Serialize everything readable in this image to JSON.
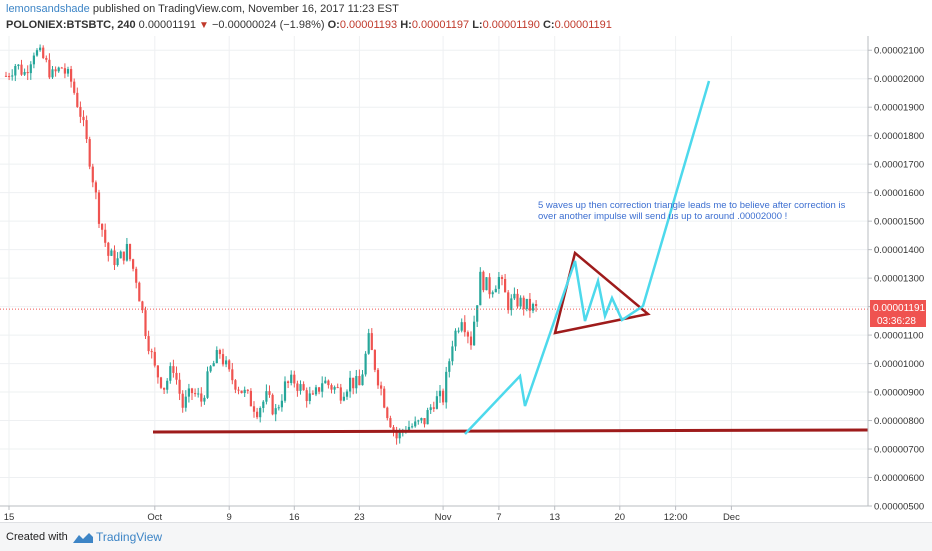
{
  "header": {
    "author": "lemonsandshade",
    "published_text": "published on TradingView.com, November 16, 2017 11:23 EST",
    "symbol": "POLONIEX:BTSBTC, 240",
    "last": "0.00001191",
    "change": "−0.00000024 (−1.98%)",
    "o_label": "O:",
    "o_value": "0.00001193",
    "h_label": "H:",
    "h_value": "0.00001197",
    "l_label": "L:",
    "l_value": "0.00001190",
    "c_label": "C:",
    "c_value": "0.00001191"
  },
  "footer": {
    "created_with": "Created with",
    "brand": "TradingView"
  },
  "colors": {
    "up": "#26a69a",
    "down": "#ef5350",
    "annotation_line": "#9e1b1b",
    "wave_line": "#4dd9ec",
    "price_tag": "#ef5350",
    "annotation_text": "#3d6fd1"
  },
  "chart_data": {
    "type": "candlestick",
    "y_axis": {
      "min": 5e-06,
      "max": 2.15e-05,
      "tick_labels": [
        "0.00000500",
        "0.00000600",
        "0.00000700",
        "0.00000800",
        "0.00000900",
        "0.00001000",
        "0.00001100",
        "0.00001200",
        "0.00001300",
        "0.00001400",
        "0.00001500",
        "0.00001600",
        "0.00001700",
        "0.00001800",
        "0.00001900",
        "0.00002000",
        "0.00002100"
      ],
      "tick_values": [
        5e-06,
        6e-06,
        7e-06,
        8e-06,
        9e-06,
        1e-05,
        1.1e-05,
        1.2e-05,
        1.3e-05,
        1.4e-05,
        1.5e-05,
        1.6e-05,
        1.7e-05,
        1.8e-05,
        1.9e-05,
        2e-05,
        2.1e-05
      ]
    },
    "x_axis": {
      "tick_labels": [
        "15",
        "Oct",
        "9",
        "16",
        "23",
        "Nov",
        "7",
        "13",
        "20",
        "12:00",
        "Dec"
      ],
      "tick_positions": [
        0.0,
        16,
        24,
        31,
        38,
        47,
        53,
        59,
        66,
        72,
        78
      ]
    },
    "grid": true,
    "current_price_label": "0.00001191",
    "countdown_label": "03:36:28",
    "current_price": 1.191e-05,
    "close_path": [
      [
        0,
        2.01e-05
      ],
      [
        1,
        2.05e-05
      ],
      [
        2,
        2.02e-05
      ],
      [
        3,
        2.1e-05
      ],
      [
        4,
        2.07e-05
      ],
      [
        5,
        2.01e-05
      ],
      [
        6,
        2.04e-05
      ],
      [
        7,
        1.99e-05
      ],
      [
        8,
        1.88e-05
      ],
      [
        9,
        1.72e-05
      ],
      [
        10,
        1.52e-05
      ],
      [
        11,
        1.38e-05
      ],
      [
        12,
        1.36e-05
      ],
      [
        13,
        1.4e-05
      ],
      [
        14,
        1.3e-05
      ],
      [
        15,
        1.12e-05
      ],
      [
        16,
        9.8e-06
      ],
      [
        17,
        9.2e-06
      ],
      [
        18,
        9.9e-06
      ],
      [
        19,
        8.5e-06
      ],
      [
        20,
        9e-06
      ],
      [
        21,
        8.7e-06
      ],
      [
        22,
        9.8e-06
      ],
      [
        23,
        1.04e-05
      ],
      [
        24,
        9.6e-06
      ],
      [
        25,
        9.2e-06
      ],
      [
        26,
        8.8e-06
      ],
      [
        27,
        8.4e-06
      ],
      [
        28,
        8.8e-06
      ],
      [
        29,
        8.3e-06
      ],
      [
        30,
        9.2e-06
      ],
      [
        31,
        9.4e-06
      ],
      [
        32,
        9e-06
      ],
      [
        33,
        8.7e-06
      ],
      [
        34,
        9.4e-06
      ],
      [
        35,
        9.2e-06
      ],
      [
        36,
        9e-06
      ],
      [
        37,
        9.4e-06
      ],
      [
        38,
        9.2e-06
      ],
      [
        39,
        1.08e-05
      ],
      [
        40,
        9.5e-06
      ],
      [
        41,
        8.3e-06
      ],
      [
        42,
        7.4e-06
      ],
      [
        43,
        7.8e-06
      ],
      [
        44,
        7.8e-06
      ],
      [
        45,
        8e-06
      ],
      [
        46,
        8.7e-06
      ],
      [
        47,
        8.8e-06
      ],
      [
        48,
        1.08e-05
      ],
      [
        49,
        1.17e-05
      ],
      [
        50,
        1.08e-05
      ],
      [
        51,
        1.3e-05
      ],
      [
        52,
        1.26e-05
      ],
      [
        53,
        1.3e-05
      ],
      [
        54,
        1.21e-05
      ],
      [
        55,
        1.22e-05
      ],
      [
        56,
        1.2e-05
      ],
      [
        57,
        1.19e-05
      ]
    ],
    "annotations": {
      "text": "5 waves up then correction triangle leads me to believe after correction is over another impulse will send us up to around .00002000 !"
    }
  }
}
